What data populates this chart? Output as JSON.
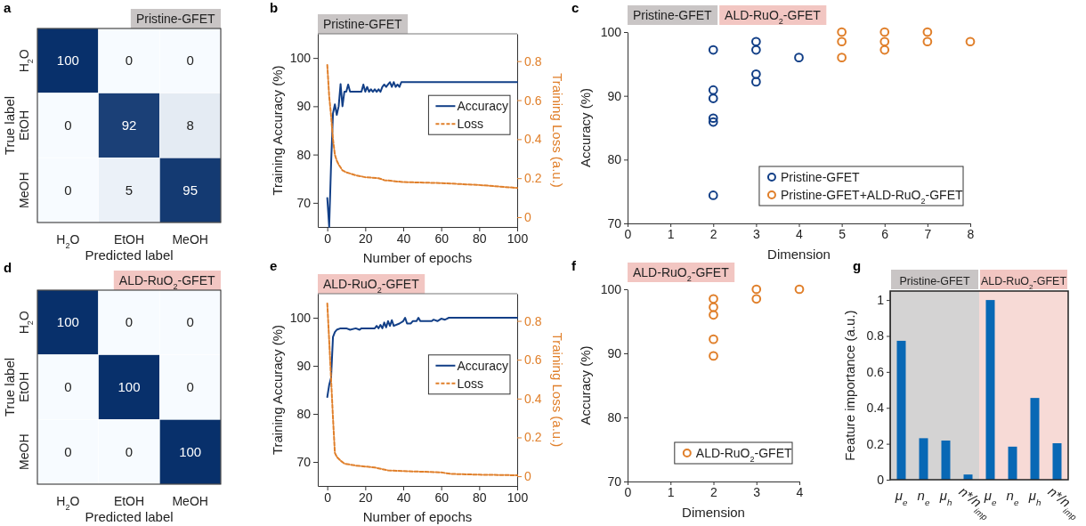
{
  "chart_data": [
    {
      "type": "heatmap",
      "title": "Pristine-GFET",
      "annotations": [
        "a"
      ],
      "xlabel": "Predicted label",
      "ylabel": "True label",
      "categories": [
        "H$_{2}$O",
        "EtOH",
        "MeOH"
      ],
      "y_categories": [
        "H$_{2}$O",
        "EtOH",
        "MeOH"
      ],
      "cells": [
        [
          100,
          0,
          0
        ],
        [
          0,
          92,
          8
        ],
        [
          0,
          5,
          95
        ]
      ],
      "data_labels": true
    },
    {
      "type": "line",
      "title": "Pristine-GFET",
      "annotations": [
        "b"
      ],
      "xlabel": "Number of epochs",
      "ylabel": "Training Accuracy (%)",
      "y2label": "Training Loss (a.u.)",
      "xlim": [
        -5,
        100
      ],
      "xticks": [
        0,
        20,
        40,
        60,
        80,
        100
      ],
      "ylim": [
        65,
        105
      ],
      "yticks": [
        70,
        80,
        90,
        100
      ],
      "y2lim": [
        -0.05,
        0.94
      ],
      "y2ticks": [
        0,
        0.2,
        0.4,
        0.6,
        0.8
      ],
      "legend": "right",
      "series": [
        {
          "name": "Accuracy",
          "color": "#123f87",
          "line_style": "solid",
          "x": [
            0,
            1,
            2,
            3,
            4,
            5,
            6,
            7,
            8,
            9,
            10,
            11,
            12,
            14,
            16,
            18,
            19,
            20,
            21,
            22,
            23,
            24,
            25,
            26,
            27,
            28,
            29,
            30,
            31,
            32,
            33,
            34,
            35,
            36,
            37,
            38,
            39,
            100
          ],
          "values": [
            71,
            65,
            78,
            88.5,
            90.4,
            88.2,
            90,
            94.6,
            90,
            93,
            93,
            94.5,
            93,
            93,
            93,
            93,
            94.5,
            93,
            94,
            93,
            93.5,
            93,
            93.5,
            93,
            93.5,
            93,
            94,
            94.5,
            94,
            94.5,
            95,
            94,
            95,
            94,
            94.5,
            94,
            95,
            95
          ]
        },
        {
          "name": "Loss",
          "color": "#e07f2a",
          "line_style": "dashed",
          "axis": "y2",
          "x": [
            0,
            1,
            2,
            3,
            4,
            5,
            6,
            8,
            10,
            15,
            20,
            27,
            30,
            40,
            60,
            80,
            100
          ],
          "values": [
            0.78,
            0.62,
            0.52,
            0.4,
            0.32,
            0.29,
            0.27,
            0.24,
            0.23,
            0.215,
            0.205,
            0.2,
            0.19,
            0.18,
            0.175,
            0.165,
            0.15
          ]
        }
      ]
    },
    {
      "type": "scatter",
      "title": "Pristine-GFET",
      "subtitle": "ALD-RuO$_{2}$-GFET",
      "annotations": [
        "c"
      ],
      "xlabel": "Dimension",
      "ylabel": "Accuracy (%)",
      "xlim": [
        0,
        8
      ],
      "xticks": [
        0,
        1,
        2,
        3,
        4,
        5,
        6,
        7,
        8
      ],
      "ylim": [
        70,
        100
      ],
      "yticks": [
        70,
        80,
        90,
        100
      ],
      "marker": "circle",
      "legend": "bottom right",
      "series": [
        {
          "name": "Pristine-GFET",
          "color": "#123f87",
          "x": [
            2,
            2,
            2,
            2,
            2,
            2,
            3,
            3,
            3,
            3,
            4
          ],
          "values": [
            97.2,
            90.9,
            89.6,
            86.5,
            85.9,
            74.4,
            98.5,
            97.2,
            93.4,
            92.2,
            96
          ]
        },
        {
          "name": "Pristine-GFET+ALD-RuO$_{2}$-GFET",
          "color": "#e07f2a",
          "x": [
            5,
            5,
            5,
            6,
            6,
            6,
            7,
            7,
            8
          ],
          "values": [
            100,
            98.5,
            96,
            100,
            98.5,
            97.2,
            100,
            98.5,
            98.5
          ]
        }
      ]
    },
    {
      "type": "heatmap",
      "title": "ALD-RuO$_{2}$-GFET",
      "annotations": [
        "d"
      ],
      "xlabel": "Predicted label",
      "ylabel": "True label",
      "categories": [
        "H$_{2}$O",
        "EtOH",
        "MeOH"
      ],
      "y_categories": [
        "H$_{2}$O",
        "EtOH",
        "MeOH"
      ],
      "cells": [
        [
          100,
          0,
          0
        ],
        [
          0,
          100,
          0
        ],
        [
          0,
          0,
          100
        ]
      ],
      "data_labels": true
    },
    {
      "type": "line",
      "title": "ALD-RuO$_{2}$-GFET",
      "annotations": [
        "e"
      ],
      "xlabel": "Number of epochs",
      "ylabel": "Training Accuracy (%)",
      "y2label": "Training Loss (a.u.)",
      "xlim": [
        -5,
        100
      ],
      "xticks": [
        0,
        20,
        40,
        60,
        80,
        100
      ],
      "ylim": [
        65,
        105
      ],
      "yticks": [
        70,
        80,
        90,
        100
      ],
      "y2lim": [
        -0.05,
        0.94
      ],
      "y2ticks": [
        0,
        0.2,
        0.4,
        0.6,
        0.8
      ],
      "legend": "right",
      "series": [
        {
          "name": "Accuracy",
          "color": "#123f87",
          "line_style": "solid",
          "x": [
            0,
            1,
            2,
            3,
            4,
            5,
            7,
            10,
            12,
            15,
            17,
            18,
            25,
            26,
            27,
            28,
            29,
            30,
            31,
            32,
            33,
            34,
            35,
            38,
            40,
            41,
            42,
            44,
            45,
            47,
            48,
            49,
            55,
            56,
            58,
            60,
            62,
            63,
            64,
            100
          ],
          "values": [
            83.5,
            86,
            87.5,
            96,
            97,
            97.5,
            97.8,
            97.8,
            97.5,
            97.8,
            97.5,
            97.8,
            97.8,
            98.3,
            97.8,
            98.5,
            97.8,
            99,
            98,
            99.3,
            98.3,
            99.5,
            98.3,
            98.8,
            99.3,
            100,
            98.8,
            98.8,
            99.3,
            99.3,
            100,
            99.3,
            99.3,
            99.6,
            99.3,
            99.8,
            99.6,
            99.8,
            100,
            100
          ]
        },
        {
          "name": "Loss",
          "color": "#e07f2a",
          "line_style": "dashed",
          "axis": "y2",
          "x": [
            0,
            1,
            2,
            3,
            4,
            5,
            7,
            9,
            15,
            25,
            32,
            45,
            60,
            65,
            80,
            100
          ],
          "values": [
            0.89,
            0.7,
            0.5,
            0.3,
            0.12,
            0.1,
            0.08,
            0.065,
            0.055,
            0.045,
            0.03,
            0.025,
            0.02,
            0.012,
            0.008,
            0.005
          ]
        }
      ]
    },
    {
      "type": "scatter",
      "title": "ALD-RuO$_{2}$-GFET",
      "annotations": [
        "f"
      ],
      "xlabel": "Dimension",
      "ylabel": "Accuracy (%)",
      "xlim": [
        0,
        4
      ],
      "xticks": [
        0,
        1,
        2,
        3,
        4
      ],
      "ylim": [
        70,
        100
      ],
      "yticks": [
        70,
        80,
        90,
        100
      ],
      "marker": "circle",
      "legend": "bottom right",
      "series": [
        {
          "name": "ALD-RuO$_{2}$-GFET",
          "color": "#e07f2a",
          "x": [
            2,
            2,
            2,
            2,
            2,
            3,
            3,
            4
          ],
          "values": [
            98.5,
            97.2,
            96,
            92.2,
            89.6,
            100,
            98.5,
            100
          ]
        }
      ]
    },
    {
      "type": "bar",
      "annotations": [
        "g",
        "Pristine-GFET",
        "ALD-RuO$_{2}$-GFET"
      ],
      "ylabel": "Feature importance (a.u.)",
      "categories": [
        "μ$_{e}$",
        "n$_{e}$",
        "μ$_{h}$",
        "n*/n$_{imp}$",
        "μ$_{e}$",
        "n$_{e}$",
        "μ$_{h}$",
        "n*/n$_{imp}$"
      ],
      "values": [
        0.773,
        0.231,
        0.218,
        0.029,
        1,
        0.184,
        0.455,
        0.203
      ],
      "color": "#0868b5",
      "ylim": [
        0,
        1.05
      ],
      "yticks": [
        0,
        0.2,
        0.4,
        0.6,
        0.8,
        1
      ]
    }
  ]
}
